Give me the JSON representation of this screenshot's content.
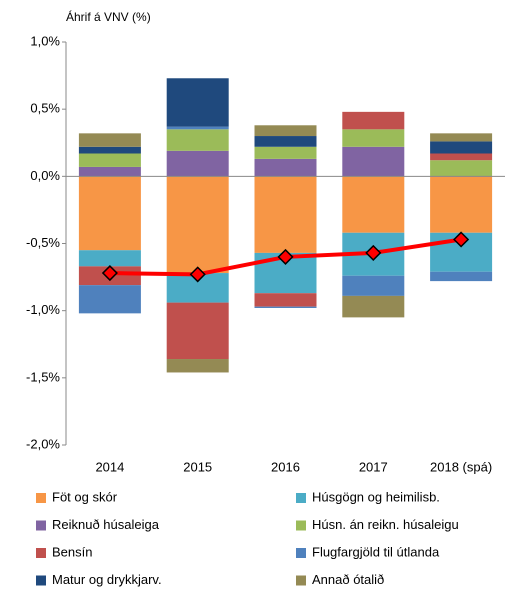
{
  "chart_data": {
    "type": "stacked_bar_line",
    "y_axis_label": "Áhrif á VNV (%)",
    "categories": [
      "2014",
      "2015",
      "2016",
      "2017",
      "2018 (spá)"
    ],
    "series": [
      {
        "name": "Föt og skór",
        "color": "#f79646",
        "values": [
          -0.55,
          -0.72,
          -0.57,
          -0.42,
          -0.42
        ]
      },
      {
        "name": "Húsgögn og heimilisb.",
        "color": "#4bacc6",
        "values": [
          -0.12,
          -0.22,
          -0.3,
          -0.32,
          -0.29
        ]
      },
      {
        "name": "Reiknuð húsaleiga",
        "color": "#8064a2",
        "values": [
          0.07,
          0.19,
          0.13,
          0.22,
          0
        ]
      },
      {
        "name": "Húsn. án reikn. húsaleigu",
        "color": "#9bbb59",
        "values": [
          0.1,
          0.16,
          0.09,
          0.13,
          0.12
        ]
      },
      {
        "name": "Bensín",
        "color": "#c0504d",
        "values": [
          -0.14,
          -0.42,
          -0.1,
          0.13,
          0.05
        ]
      },
      {
        "name": "Flugfargjöld til útlanda",
        "color": "#4f81bd",
        "values": [
          -0.21,
          0.02,
          -0.01,
          -0.15,
          -0.07
        ]
      },
      {
        "name": "Matur og drykkjarv.",
        "color": "#1f497d",
        "values": [
          0.05,
          0.36,
          0.08,
          0,
          0.09
        ]
      },
      {
        "name": "Annað ótalið",
        "color": "#948a54",
        "values": [
          0.1,
          -0.1,
          0.08,
          -0.16,
          0.06
        ]
      }
    ],
    "line": {
      "color": "#ff0000",
      "values": [
        -0.72,
        -0.73,
        -0.6,
        -0.57,
        -0.47
      ]
    },
    "ylim": [
      -2,
      1
    ],
    "yticks": [
      {
        "value": -2,
        "label": "-2,0%"
      },
      {
        "value": -1.5,
        "label": "-1,5%"
      },
      {
        "value": -1,
        "label": "-1,0%"
      },
      {
        "value": -0.5,
        "label": "-0,5%"
      },
      {
        "value": 0,
        "label": "0,0%"
      },
      {
        "value": 0.5,
        "label": "0,5%"
      },
      {
        "value": 1,
        "label": "1,0%"
      }
    ]
  }
}
